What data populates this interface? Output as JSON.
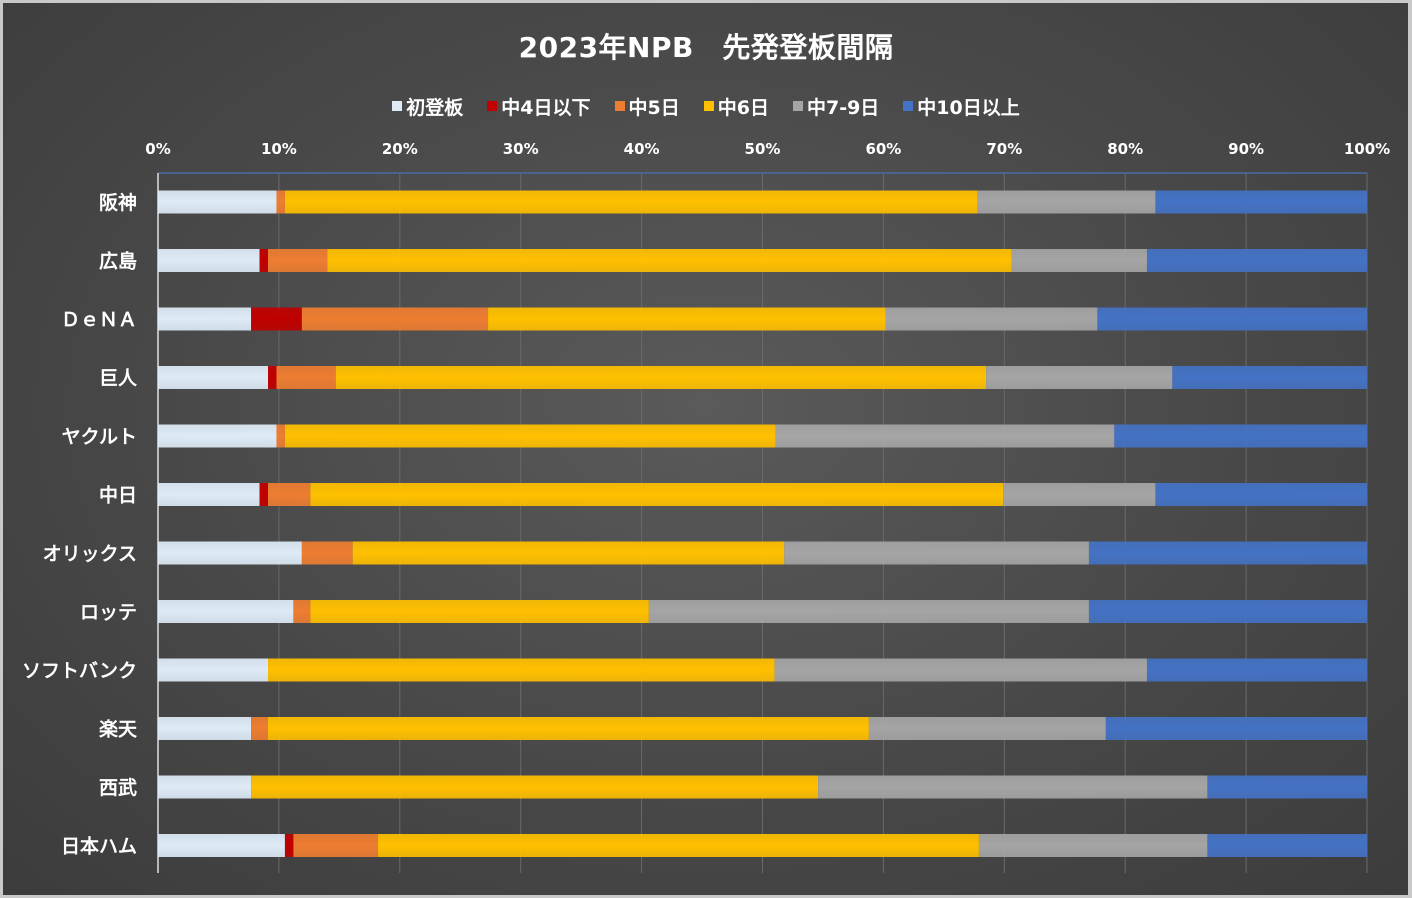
{
  "chart_data": {
    "type": "bar",
    "orientation": "horizontal",
    "stacked": "percent",
    "title": "2023年NPB　先発登板間隔",
    "xlabel": "",
    "ylabel": "",
    "xlim": [
      0,
      100
    ],
    "x_ticks": [
      "0%",
      "10%",
      "20%",
      "30%",
      "40%",
      "50%",
      "60%",
      "70%",
      "80%",
      "90%",
      "100%"
    ],
    "x_axis_position": "top",
    "legend_position": "top",
    "grid": true,
    "categories": [
      "阪神",
      "広島",
      "ＤｅＮＡ",
      "巨人",
      "ヤクルト",
      "中日",
      "オリックス",
      "ロッテ",
      "ソフトバンク",
      "楽天",
      "西武",
      "日本ハム"
    ],
    "series": [
      {
        "name": "初登板",
        "color": "#deebf7",
        "values": [
          9.8,
          8.4,
          7.7,
          9.1,
          9.8,
          8.4,
          11.9,
          11.2,
          9.1,
          7.7,
          7.7,
          10.5
        ]
      },
      {
        "name": "中4日以下",
        "color": "#c00000",
        "values": [
          0,
          0.7,
          4.2,
          0.7,
          0,
          0.7,
          0,
          0,
          0,
          0,
          0,
          0.7
        ]
      },
      {
        "name": "中5日",
        "color": "#ed7d31",
        "values": [
          0.7,
          4.9,
          15.4,
          4.9,
          0.7,
          3.5,
          4.2,
          1.4,
          0,
          1.4,
          0,
          7.0
        ]
      },
      {
        "name": "中6日",
        "color": "#ffc000",
        "values": [
          57.3,
          56.6,
          32.9,
          53.8,
          40.6,
          57.3,
          35.7,
          28.0,
          41.9,
          49.7,
          46.9,
          49.7
        ]
      },
      {
        "name": "中7-9日",
        "color": "#a5a5a5",
        "values": [
          14.7,
          11.2,
          17.5,
          15.4,
          28.0,
          12.6,
          25.2,
          36.4,
          30.8,
          19.6,
          32.2,
          18.9
        ]
      },
      {
        "name": "中10日以上",
        "color": "#4472c4",
        "values": [
          17.5,
          18.2,
          22.3,
          16.1,
          20.9,
          17.5,
          23.0,
          23.0,
          18.2,
          21.6,
          13.2,
          13.2
        ]
      }
    ]
  }
}
